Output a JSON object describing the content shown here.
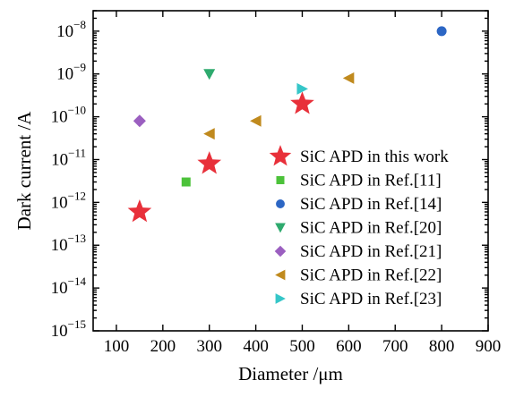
{
  "chart_data": {
    "type": "scatter",
    "title": "",
    "xlabel": "Diameter /μm",
    "ylabel": "Dark current /A",
    "x_ticks": [
      100,
      200,
      300,
      400,
      500,
      600,
      700,
      800,
      900
    ],
    "y_ticks": [
      {
        "exp": -15,
        "base": "10",
        "power": "−15"
      },
      {
        "exp": -14,
        "base": "10",
        "power": "−14"
      },
      {
        "exp": -13,
        "base": "10",
        "power": "−13"
      },
      {
        "exp": -12,
        "base": "10",
        "power": "−12"
      },
      {
        "exp": -11,
        "base": "10",
        "power": "−11"
      },
      {
        "exp": -10,
        "base": "10",
        "power": "−10"
      },
      {
        "exp": -9,
        "base": "10",
        "power": "−9"
      },
      {
        "exp": -8,
        "base": "10",
        "power": "−8"
      }
    ],
    "xlim": [
      50,
      900
    ],
    "ylim": [
      1e-15,
      3e-08
    ],
    "y_scale": "log",
    "grid": false,
    "legend_position": "right",
    "series": [
      {
        "name": "SiC APD in this work",
        "marker": "star",
        "color": "#e8303a",
        "points": [
          {
            "x": 150,
            "y": 6e-13
          },
          {
            "x": 300,
            "y": 8e-12
          },
          {
            "x": 500,
            "y": 2e-10
          }
        ]
      },
      {
        "name": "SiC APD in Ref.[11]",
        "marker": "square",
        "color": "#4cc23a",
        "points": [
          {
            "x": 250,
            "y": 3e-12
          }
        ]
      },
      {
        "name": "SiC APD in Ref.[14]",
        "marker": "circle",
        "color": "#2c66c4",
        "points": [
          {
            "x": 800,
            "y": 1e-08
          }
        ]
      },
      {
        "name": "SiC APD in Ref.[20]",
        "marker": "triangle-down",
        "color": "#2eaa6e",
        "points": [
          {
            "x": 300,
            "y": 1e-09
          }
        ]
      },
      {
        "name": "SiC APD in Ref.[21]",
        "marker": "diamond",
        "color": "#9b5fc0",
        "points": [
          {
            "x": 150,
            "y": 8e-11
          }
        ]
      },
      {
        "name": "SiC APD in Ref.[22]",
        "marker": "triangle-left",
        "color": "#c08a1e",
        "points": [
          {
            "x": 300,
            "y": 4e-11
          },
          {
            "x": 400,
            "y": 8e-11
          },
          {
            "x": 600,
            "y": 8e-10
          }
        ]
      },
      {
        "name": "SiC APD in Ref.[23]",
        "marker": "triangle-right",
        "color": "#35c6c8",
        "points": [
          {
            "x": 500,
            "y": 4.5e-10
          }
        ]
      }
    ]
  }
}
